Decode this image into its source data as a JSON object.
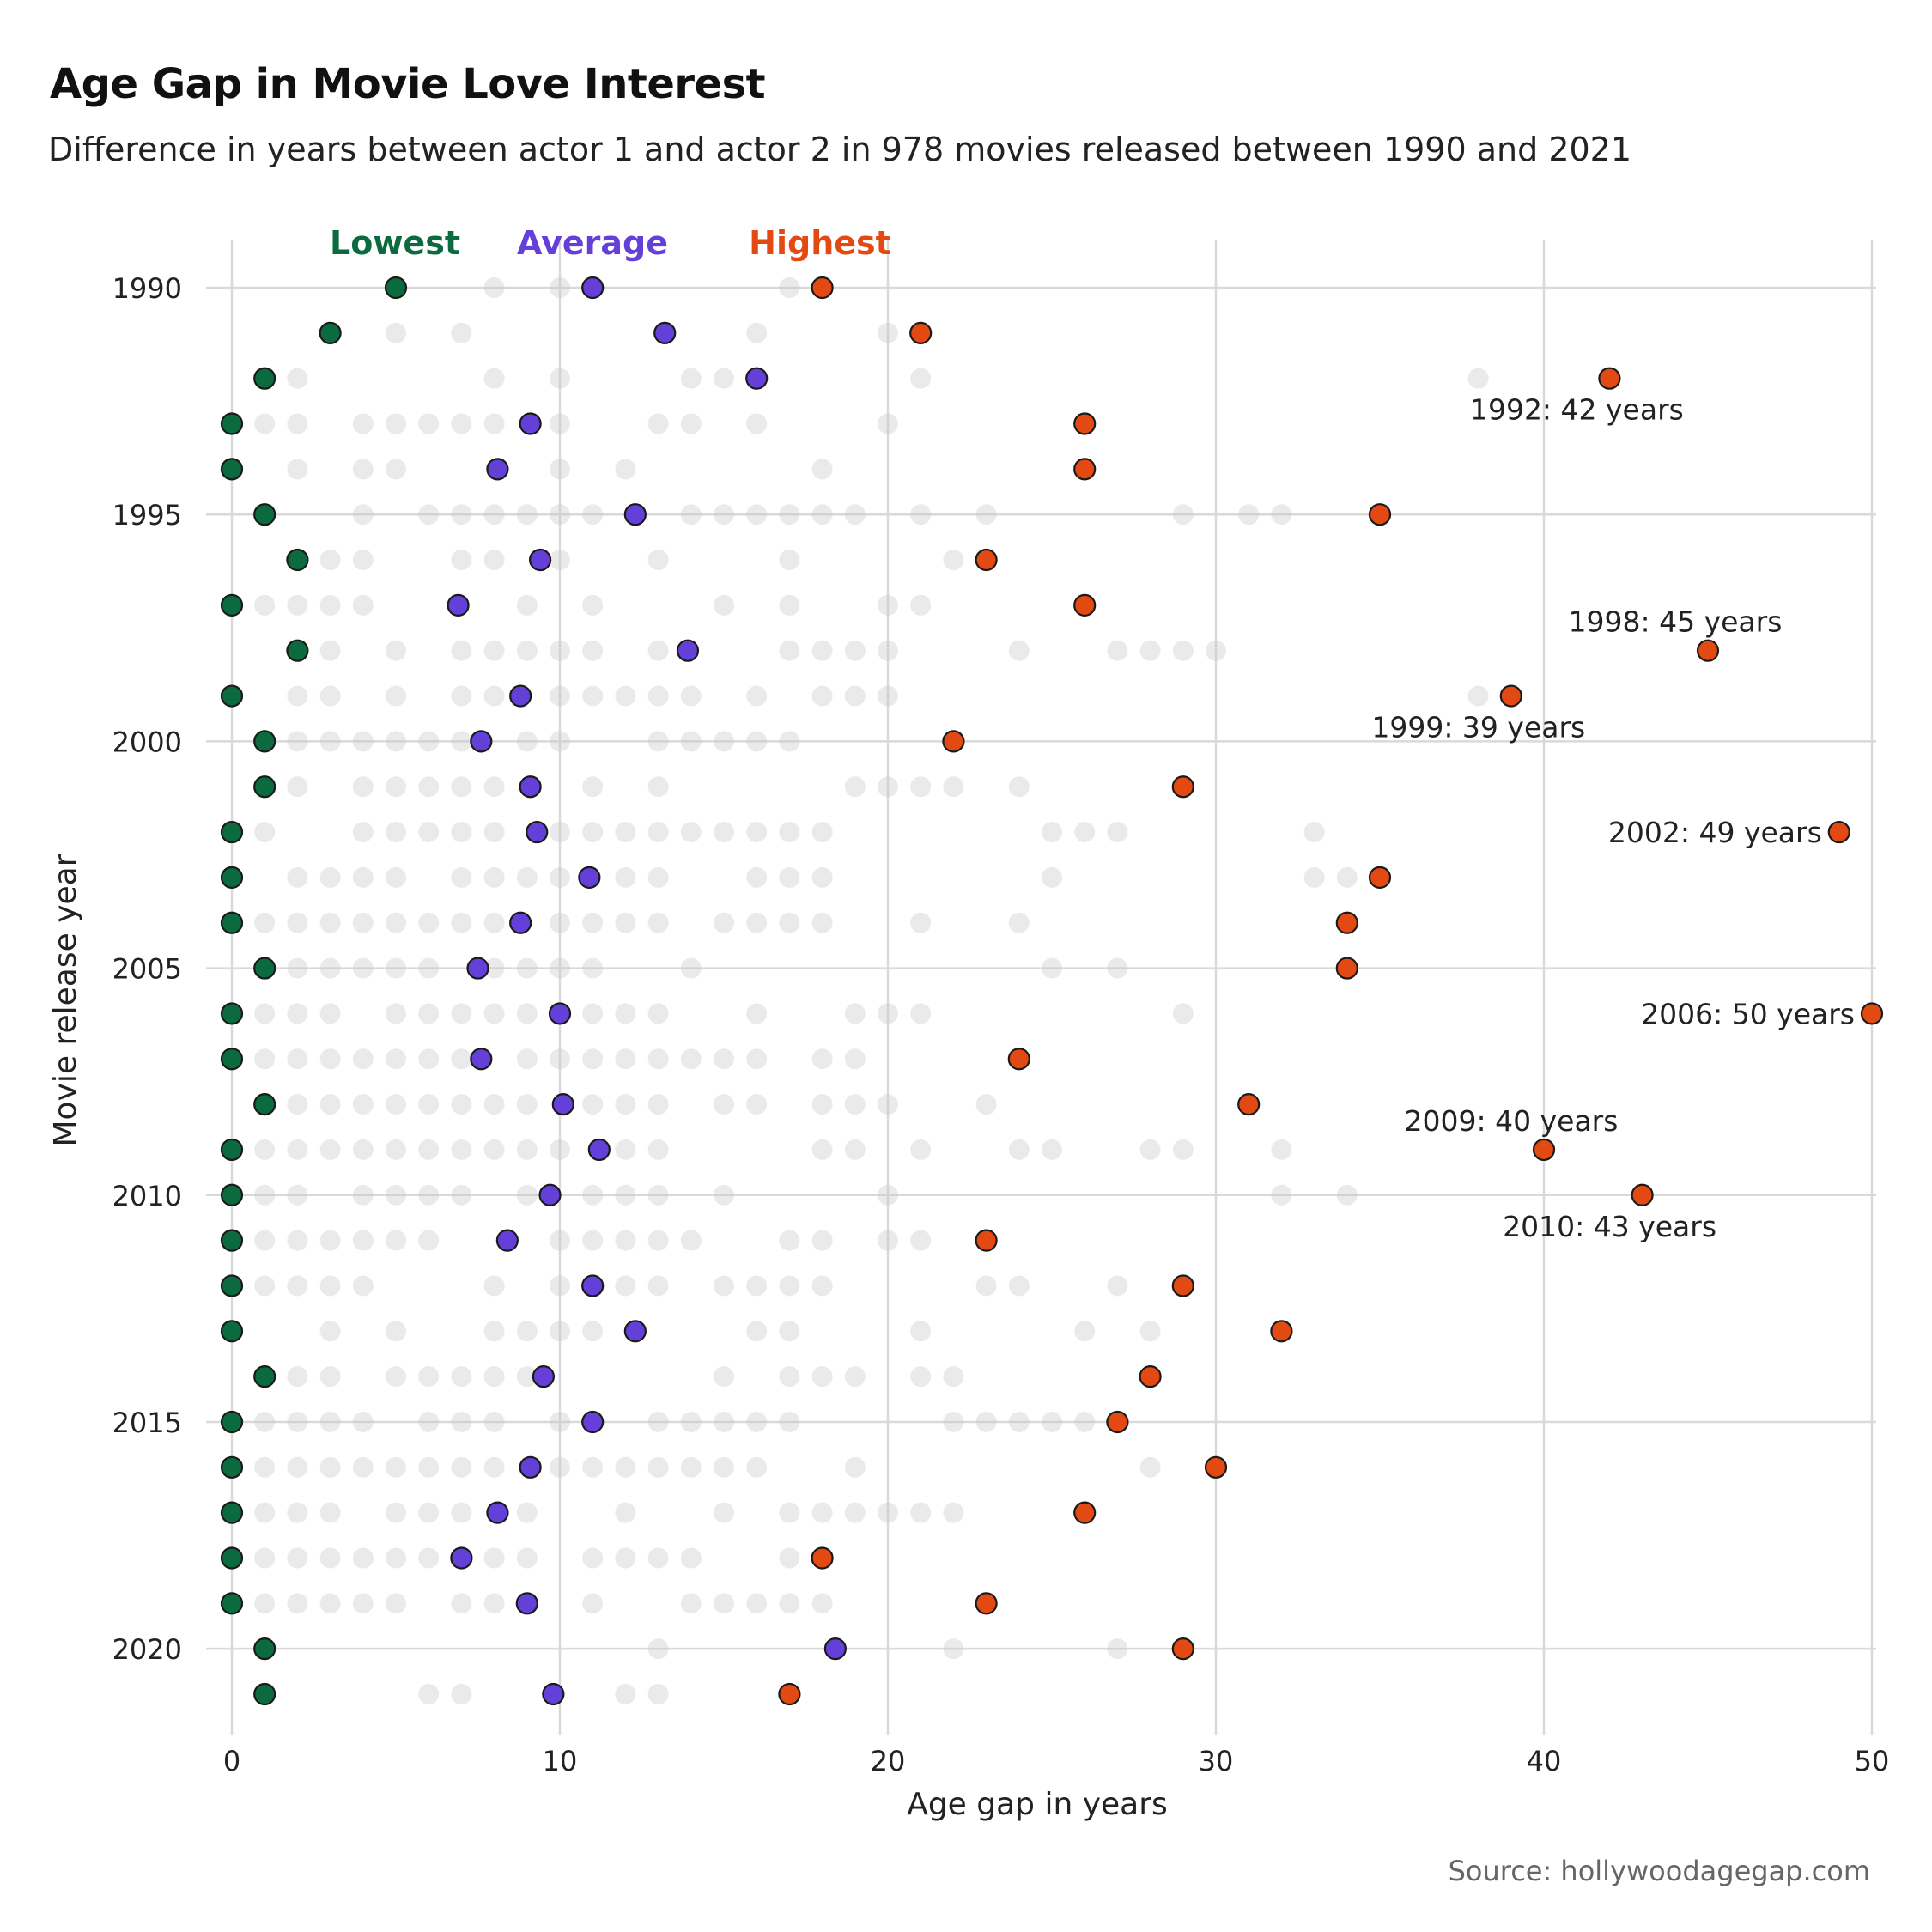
{
  "title": "Age Gap in Movie Love Interest",
  "subtitle": "Difference in years between actor 1 and actor 2 in 978 movies released between 1990 and 2021",
  "source": "Source: hollywoodagegap.com",
  "colors": {
    "lowest": "#0b6b3e",
    "average": "#6440d8",
    "highest": "#e34a13",
    "background_dot": "#c8c8c8",
    "grid": "#d9d9d9"
  },
  "chart_data": {
    "type": "scatter",
    "xlabel": "Age gap in years",
    "ylabel": "Movie release year",
    "xlim": [
      0,
      50
    ],
    "ylim": [
      1990,
      2021
    ],
    "x_ticks": [
      0,
      10,
      20,
      30,
      40,
      50
    ],
    "y_ticks": [
      1990,
      1995,
      2000,
      2005,
      2010,
      2015,
      2020
    ],
    "grid": true,
    "legend": {
      "placement": "top",
      "entries": [
        "Lowest",
        "Average",
        "Highest"
      ]
    },
    "series": [
      {
        "name": "Lowest",
        "points": [
          [
            5,
            1990
          ],
          [
            3,
            1991
          ],
          [
            1,
            1992
          ],
          [
            0,
            1993
          ],
          [
            0,
            1994
          ],
          [
            1,
            1995
          ],
          [
            2,
            1996
          ],
          [
            0,
            1997
          ],
          [
            2,
            1998
          ],
          [
            0,
            1999
          ],
          [
            1,
            2000
          ],
          [
            1,
            2001
          ],
          [
            0,
            2002
          ],
          [
            0,
            2003
          ],
          [
            0,
            2004
          ],
          [
            1,
            2005
          ],
          [
            0,
            2006
          ],
          [
            0,
            2007
          ],
          [
            1,
            2008
          ],
          [
            0,
            2009
          ],
          [
            0,
            2010
          ],
          [
            0,
            2011
          ],
          [
            0,
            2012
          ],
          [
            0,
            2013
          ],
          [
            1,
            2014
          ],
          [
            0,
            2015
          ],
          [
            0,
            2016
          ],
          [
            0,
            2017
          ],
          [
            0,
            2018
          ],
          [
            0,
            2019
          ],
          [
            1,
            2020
          ],
          [
            1,
            2021
          ]
        ]
      },
      {
        "name": "Average",
        "points": [
          [
            11,
            1990
          ],
          [
            13.2,
            1991
          ],
          [
            16,
            1992
          ],
          [
            9.1,
            1993
          ],
          [
            8.1,
            1994
          ],
          [
            12.3,
            1995
          ],
          [
            9.4,
            1996
          ],
          [
            6.9,
            1997
          ],
          [
            13.9,
            1998
          ],
          [
            8.8,
            1999
          ],
          [
            7.6,
            2000
          ],
          [
            9.1,
            2001
          ],
          [
            9.3,
            2002
          ],
          [
            10.9,
            2003
          ],
          [
            8.8,
            2004
          ],
          [
            7.5,
            2005
          ],
          [
            10,
            2006
          ],
          [
            7.6,
            2007
          ],
          [
            10.1,
            2008
          ],
          [
            11.2,
            2009
          ],
          [
            9.7,
            2010
          ],
          [
            8.4,
            2011
          ],
          [
            11,
            2012
          ],
          [
            12.3,
            2013
          ],
          [
            9.5,
            2014
          ],
          [
            11,
            2015
          ],
          [
            9.1,
            2016
          ],
          [
            8.1,
            2017
          ],
          [
            7,
            2018
          ],
          [
            9,
            2019
          ],
          [
            18.4,
            2020
          ],
          [
            9.8,
            2021
          ]
        ]
      },
      {
        "name": "Highest",
        "points": [
          [
            18,
            1990
          ],
          [
            21,
            1991
          ],
          [
            42,
            1992
          ],
          [
            26,
            1993
          ],
          [
            26,
            1994
          ],
          [
            35,
            1995
          ],
          [
            23,
            1996
          ],
          [
            26,
            1997
          ],
          [
            45,
            1998
          ],
          [
            39,
            1999
          ],
          [
            22,
            2000
          ],
          [
            29,
            2001
          ],
          [
            49,
            2002
          ],
          [
            35,
            2003
          ],
          [
            34,
            2004
          ],
          [
            34,
            2005
          ],
          [
            50,
            2006
          ],
          [
            24,
            2007
          ],
          [
            31,
            2008
          ],
          [
            40,
            2009
          ],
          [
            43,
            2010
          ],
          [
            23,
            2011
          ],
          [
            29,
            2012
          ],
          [
            32,
            2013
          ],
          [
            28,
            2014
          ],
          [
            27,
            2015
          ],
          [
            30,
            2016
          ],
          [
            26,
            2017
          ],
          [
            18,
            2018
          ],
          [
            23,
            2019
          ],
          [
            29,
            2020
          ],
          [
            17,
            2021
          ]
        ]
      }
    ],
    "annotations": [
      {
        "text": "1992: 42 years",
        "x": 42,
        "y": 1992,
        "pos": "below"
      },
      {
        "text": "1998: 45 years",
        "x": 45,
        "y": 1998,
        "pos": "above"
      },
      {
        "text": "1999: 39 years",
        "x": 39,
        "y": 1999,
        "pos": "below"
      },
      {
        "text": "2002: 49 years",
        "x": 49,
        "y": 2002,
        "pos": "left"
      },
      {
        "text": "2006: 50 years",
        "x": 50,
        "y": 2006,
        "pos": "left"
      },
      {
        "text": "2009: 40 years",
        "x": 40,
        "y": 2009,
        "pos": "above"
      },
      {
        "text": "2010: 43 years",
        "x": 43,
        "y": 2010,
        "pos": "below"
      }
    ],
    "background_points": {
      "1990": [
        8,
        10,
        17
      ],
      "1991": [
        5,
        7,
        16,
        20
      ],
      "1992": [
        2,
        8,
        10,
        14,
        15,
        21,
        38
      ],
      "1993": [
        1,
        2,
        4,
        5,
        6,
        7,
        8,
        10,
        13,
        14,
        16,
        20
      ],
      "1994": [
        2,
        4,
        5,
        10,
        12,
        18
      ],
      "1995": [
        4,
        6,
        7,
        8,
        9,
        10,
        11,
        14,
        15,
        16,
        17,
        18,
        19,
        21,
        23,
        29,
        31,
        32
      ],
      "1996": [
        3,
        4,
        7,
        8,
        10,
        13,
        17,
        22
      ],
      "1997": [
        1,
        2,
        3,
        4,
        9,
        11,
        15,
        17,
        20,
        21
      ],
      "1998": [
        3,
        5,
        7,
        8,
        9,
        10,
        11,
        13,
        17,
        18,
        19,
        20,
        24,
        27,
        28,
        29,
        30
      ],
      "1999": [
        2,
        3,
        5,
        7,
        8,
        10,
        11,
        12,
        13,
        14,
        16,
        18,
        19,
        20,
        38
      ],
      "2000": [
        2,
        3,
        4,
        5,
        6,
        7,
        9,
        10,
        13,
        14,
        15,
        16,
        17
      ],
      "2001": [
        2,
        4,
        5,
        6,
        7,
        8,
        11,
        13,
        19,
        20,
        21,
        22,
        24
      ],
      "2002": [
        1,
        4,
        5,
        6,
        7,
        8,
        10,
        11,
        12,
        13,
        14,
        15,
        16,
        17,
        18,
        25,
        26,
        27,
        33
      ],
      "2003": [
        2,
        3,
        4,
        5,
        7,
        8,
        9,
        10,
        12,
        13,
        16,
        17,
        18,
        25,
        33,
        34
      ],
      "2004": [
        1,
        2,
        3,
        4,
        5,
        6,
        7,
        8,
        10,
        11,
        12,
        13,
        15,
        16,
        17,
        18,
        21,
        24
      ],
      "2005": [
        2,
        3,
        4,
        5,
        6,
        8,
        9,
        10,
        11,
        14,
        25,
        27
      ],
      "2006": [
        1,
        2,
        3,
        5,
        6,
        7,
        8,
        9,
        11,
        12,
        13,
        16,
        19,
        20,
        21,
        29
      ],
      "2007": [
        1,
        2,
        3,
        4,
        5,
        6,
        7,
        9,
        10,
        11,
        12,
        13,
        14,
        15,
        16,
        18,
        19
      ],
      "2008": [
        2,
        3,
        4,
        5,
        6,
        7,
        8,
        9,
        11,
        12,
        13,
        15,
        16,
        18,
        19,
        20,
        23
      ],
      "2009": [
        1,
        2,
        3,
        4,
        5,
        6,
        7,
        8,
        9,
        10,
        12,
        13,
        18,
        19,
        21,
        24,
        25,
        28,
        29,
        32
      ],
      "2010": [
        1,
        2,
        4,
        5,
        6,
        7,
        9,
        11,
        12,
        13,
        15,
        20,
        32,
        34
      ],
      "2011": [
        1,
        2,
        3,
        4,
        5,
        6,
        10,
        11,
        12,
        13,
        14,
        17,
        18,
        20,
        21
      ],
      "2012": [
        1,
        2,
        3,
        4,
        8,
        10,
        12,
        13,
        15,
        16,
        17,
        18,
        23,
        24,
        27
      ],
      "2013": [
        3,
        5,
        8,
        9,
        10,
        11,
        16,
        17,
        21,
        26,
        28
      ],
      "2014": [
        2,
        3,
        5,
        6,
        7,
        8,
        9,
        15,
        17,
        18,
        19,
        21,
        22
      ],
      "2015": [
        1,
        2,
        3,
        4,
        6,
        7,
        8,
        10,
        13,
        14,
        15,
        16,
        17,
        22,
        23,
        24,
        25,
        26
      ],
      "2016": [
        1,
        2,
        3,
        4,
        5,
        6,
        7,
        8,
        10,
        11,
        12,
        13,
        14,
        15,
        16,
        19,
        28
      ],
      "2017": [
        1,
        2,
        3,
        5,
        6,
        7,
        9,
        12,
        15,
        17,
        18,
        19,
        20,
        21,
        22
      ],
      "2018": [
        1,
        2,
        3,
        4,
        5,
        6,
        8,
        9,
        11,
        12,
        13,
        14,
        17
      ],
      "2019": [
        1,
        2,
        3,
        4,
        5,
        7,
        8,
        11,
        14,
        15,
        16,
        17,
        18
      ],
      "2020": [
        13,
        22,
        27
      ],
      "2021": [
        6,
        7,
        12,
        13
      ]
    }
  }
}
